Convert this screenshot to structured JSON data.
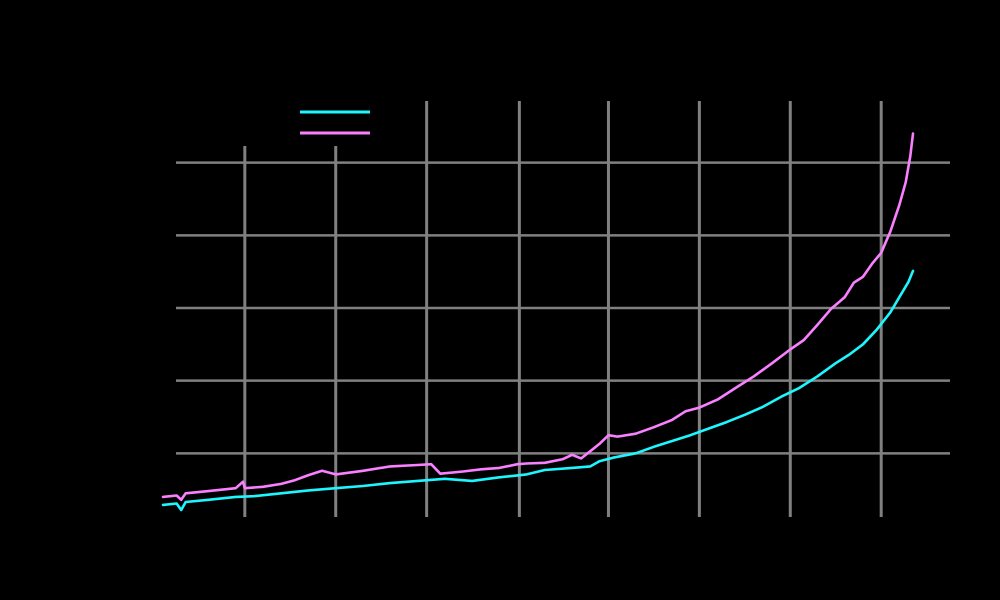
{
  "chart_data": {
    "type": "line",
    "title": "",
    "xlabel": "",
    "ylabel": "",
    "xlim": [
      0,
      88
    ],
    "ylim": [
      0,
      60
    ],
    "x_gridlines": [
      9,
      19,
      29,
      39.2,
      49,
      59,
      69,
      79
    ],
    "y_gridlines": [
      10,
      20,
      30,
      40,
      50
    ],
    "grid": true,
    "legend": {
      "placement": "top-left",
      "entries": [
        "",
        ""
      ]
    },
    "colors": {
      "background": "#000000",
      "grid": "#808080",
      "series_a": "#1ef6ff",
      "series_b": "#f980ff"
    },
    "series": [
      {
        "values": [
          [
            0,
            2.9
          ],
          [
            1.5,
            3.1
          ],
          [
            2,
            2.2
          ],
          [
            2.5,
            3.3
          ],
          [
            5,
            3.6
          ],
          [
            8,
            4
          ],
          [
            10,
            4.1
          ],
          [
            13,
            4.5
          ],
          [
            16,
            4.9
          ],
          [
            19,
            5.2
          ],
          [
            22,
            5.5
          ],
          [
            25,
            5.9
          ],
          [
            28,
            6.2
          ],
          [
            31,
            6.5
          ],
          [
            34,
            6.2
          ],
          [
            37,
            6.7
          ],
          [
            40,
            7.1
          ],
          [
            42,
            7.7
          ],
          [
            45,
            8.0
          ],
          [
            47,
            8.2
          ],
          [
            48,
            8.9
          ],
          [
            49.5,
            9.4
          ],
          [
            52,
            10.0
          ],
          [
            54,
            10.9
          ],
          [
            56,
            11.7
          ],
          [
            58,
            12.5
          ],
          [
            60,
            13.4
          ],
          [
            62,
            14.3
          ],
          [
            64,
            15.3
          ],
          [
            66,
            16.4
          ],
          [
            68,
            17.8
          ],
          [
            70,
            19.0
          ],
          [
            72,
            20.6
          ],
          [
            74,
            22.4
          ],
          [
            75.5,
            23.6
          ],
          [
            77,
            25.0
          ],
          [
            78.5,
            27.0
          ],
          [
            80,
            29.4
          ],
          [
            81,
            31.5
          ],
          [
            82,
            33.6
          ],
          [
            82.5,
            35.1
          ]
        ]
      },
      {
        "values": [
          [
            0,
            4
          ],
          [
            1.5,
            4.2
          ],
          [
            2,
            3.6
          ],
          [
            2.5,
            4.5
          ],
          [
            5,
            4.8
          ],
          [
            8,
            5.2
          ],
          [
            8.8,
            6.1
          ],
          [
            9,
            5.2
          ],
          [
            11,
            5.4
          ],
          [
            13,
            5.8
          ],
          [
            14.5,
            6.3
          ],
          [
            16,
            7.0
          ],
          [
            17.5,
            7.6
          ],
          [
            19,
            7.1
          ],
          [
            22,
            7.6
          ],
          [
            25,
            8.2
          ],
          [
            28,
            8.4
          ],
          [
            29.5,
            8.5
          ],
          [
            30.5,
            7.2
          ],
          [
            33,
            7.5
          ],
          [
            35,
            7.8
          ],
          [
            37,
            8.0
          ],
          [
            39,
            8.5
          ],
          [
            40,
            8.6
          ],
          [
            42,
            8.7
          ],
          [
            44,
            9.2
          ],
          [
            45,
            9.8
          ],
          [
            46,
            9.3
          ],
          [
            47,
            10.3
          ],
          [
            48,
            11.3
          ],
          [
            49,
            12.5
          ],
          [
            50,
            12.3
          ],
          [
            52,
            12.7
          ],
          [
            54,
            13.6
          ],
          [
            56,
            14.6
          ],
          [
            57.5,
            15.8
          ],
          [
            59,
            16.3
          ],
          [
            61,
            17.4
          ],
          [
            63,
            19.0
          ],
          [
            65,
            20.6
          ],
          [
            67,
            22.4
          ],
          [
            69,
            24.3
          ],
          [
            70.5,
            25.6
          ],
          [
            72,
            27.7
          ],
          [
            73.5,
            29.9
          ],
          [
            75,
            31.5
          ],
          [
            76,
            33.5
          ],
          [
            77,
            34.3
          ],
          [
            78,
            36.1
          ],
          [
            79,
            37.6
          ],
          [
            80,
            40.5
          ],
          [
            81,
            44.2
          ],
          [
            81.7,
            47.3
          ],
          [
            82.2,
            50.9
          ],
          [
            82.5,
            54.0
          ]
        ]
      }
    ]
  }
}
